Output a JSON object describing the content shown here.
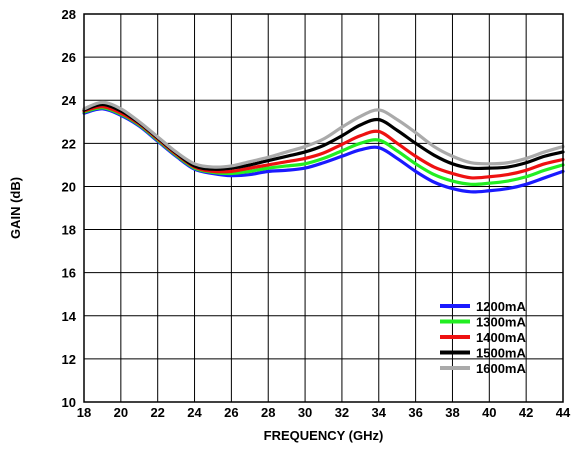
{
  "chart_data": {
    "type": "line",
    "title": "",
    "xlabel": "FREQUENCY (GHz)",
    "ylabel": "GAIN (dB)",
    "xlim": [
      18,
      44
    ],
    "ylim": [
      10,
      28
    ],
    "grid": true,
    "legend_position": "bottom-right",
    "x": [
      18,
      19,
      20,
      21,
      22,
      23,
      24,
      25,
      26,
      27,
      28,
      29,
      30,
      31,
      32,
      33,
      34,
      35,
      36,
      37,
      38,
      39,
      40,
      41,
      42,
      43,
      44
    ],
    "x_ticks": [
      "18",
      "20",
      "22",
      "24",
      "26",
      "28",
      "30",
      "32",
      "34",
      "36",
      "38",
      "40",
      "42",
      "44"
    ],
    "y_ticks": [
      "10",
      "12",
      "14",
      "16",
      "18",
      "20",
      "22",
      "24",
      "26",
      "28"
    ],
    "series": [
      {
        "name": "1200mA",
        "color": "#1a1aff",
        "values": [
          23.4,
          23.6,
          23.3,
          22.8,
          22.1,
          21.4,
          20.8,
          20.6,
          20.5,
          20.55,
          20.7,
          20.75,
          20.85,
          21.1,
          21.4,
          21.7,
          21.8,
          21.3,
          20.7,
          20.2,
          19.9,
          19.75,
          19.8,
          19.9,
          20.1,
          20.4,
          20.7
        ]
      },
      {
        "name": "1300mA",
        "color": "#22ee22",
        "values": [
          23.45,
          23.65,
          23.35,
          22.85,
          22.15,
          21.45,
          20.85,
          20.65,
          20.6,
          20.7,
          20.85,
          20.95,
          21.05,
          21.3,
          21.65,
          22.0,
          22.15,
          21.65,
          21.05,
          20.55,
          20.25,
          20.1,
          20.15,
          20.25,
          20.45,
          20.75,
          21.0
        ]
      },
      {
        "name": "1400mA",
        "color": "#ee1111",
        "values": [
          23.5,
          23.7,
          23.4,
          22.9,
          22.2,
          21.5,
          20.9,
          20.7,
          20.7,
          20.85,
          21.0,
          21.15,
          21.3,
          21.55,
          21.95,
          22.35,
          22.55,
          22.0,
          21.4,
          20.9,
          20.6,
          20.4,
          20.45,
          20.55,
          20.75,
          21.05,
          21.25
        ]
      },
      {
        "name": "1500mA",
        "color": "#000000",
        "values": [
          23.55,
          23.8,
          23.5,
          22.95,
          22.25,
          21.55,
          20.95,
          20.8,
          20.85,
          21.0,
          21.2,
          21.4,
          21.6,
          21.9,
          22.35,
          22.85,
          23.1,
          22.6,
          22.0,
          21.45,
          21.05,
          20.85,
          20.85,
          20.9,
          21.1,
          21.4,
          21.6
        ]
      },
      {
        "name": "1600mA",
        "color": "#aaaaaa",
        "values": [
          23.6,
          23.9,
          23.6,
          23.0,
          22.3,
          21.6,
          21.05,
          20.9,
          20.95,
          21.15,
          21.35,
          21.6,
          21.85,
          22.2,
          22.75,
          23.25,
          23.55,
          23.1,
          22.5,
          21.85,
          21.4,
          21.1,
          21.05,
          21.1,
          21.3,
          21.6,
          21.85
        ]
      }
    ]
  }
}
